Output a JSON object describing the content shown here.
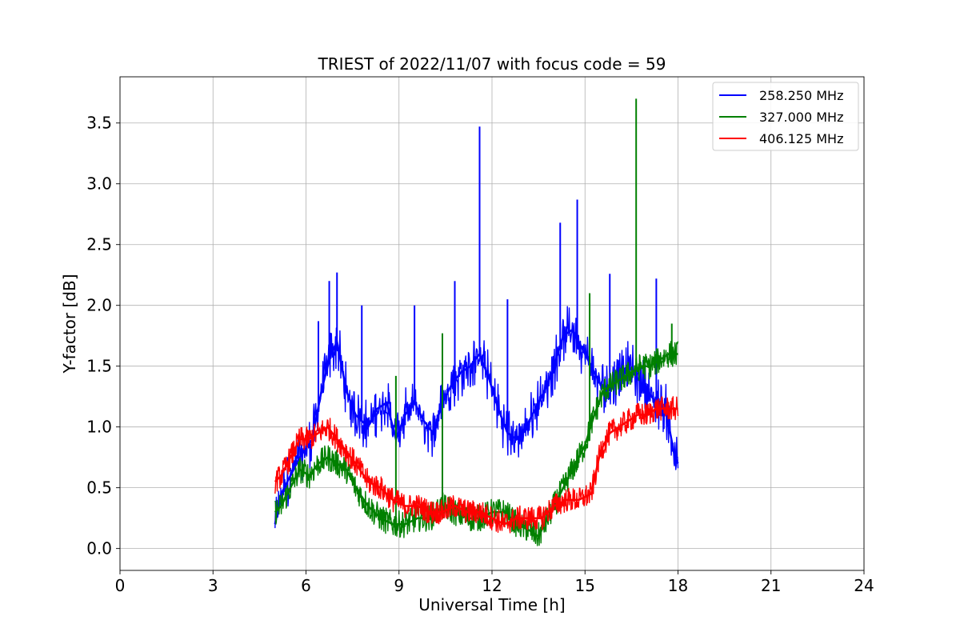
{
  "chart_data": {
    "type": "line",
    "title": "TRIEST of 2022/11/07 with focus code = 59",
    "xlabel": "Universal Time [h]",
    "ylabel": "Y-factor [dB]",
    "xlim": [
      0,
      24
    ],
    "ylim": [
      -0.18,
      3.88
    ],
    "xticks": [
      0,
      3,
      6,
      9,
      12,
      15,
      18,
      21,
      24
    ],
    "xtick_labels": [
      "0",
      "3",
      "6",
      "9",
      "12",
      "15",
      "18",
      "21",
      "24"
    ],
    "yticks": [
      0.0,
      0.5,
      1.0,
      1.5,
      2.0,
      2.5,
      3.0,
      3.5
    ],
    "ytick_labels": [
      "0.0",
      "0.5",
      "1.0",
      "1.5",
      "2.0",
      "2.5",
      "3.0",
      "3.5"
    ],
    "grid": true,
    "legend_position": "top-right",
    "series": [
      {
        "name": "258.250 MHz",
        "color": "#0000ff",
        "x": [
          5.0,
          5.2,
          5.5,
          5.8,
          6.2,
          6.5,
          6.8,
          7.0,
          7.3,
          7.6,
          8.0,
          8.3,
          8.6,
          8.9,
          9.2,
          9.5,
          9.8,
          10.1,
          10.4,
          10.7,
          11.0,
          11.3,
          11.6,
          11.9,
          12.2,
          12.5,
          12.8,
          13.1,
          13.4,
          13.7,
          14.0,
          14.3,
          14.6,
          14.9,
          15.2,
          15.5,
          15.8,
          16.1,
          16.4,
          16.7,
          17.0,
          17.3,
          17.6,
          17.9,
          18.0
        ],
        "y": [
          0.2,
          0.45,
          0.6,
          0.75,
          0.9,
          1.3,
          1.6,
          1.7,
          1.3,
          1.1,
          1.0,
          1.15,
          1.2,
          0.9,
          1.1,
          1.2,
          1.05,
          0.95,
          1.2,
          1.35,
          1.45,
          1.5,
          1.6,
          1.4,
          1.15,
          0.95,
          0.9,
          1.0,
          1.15,
          1.3,
          1.5,
          1.75,
          1.8,
          1.65,
          1.5,
          1.35,
          1.3,
          1.45,
          1.5,
          1.4,
          1.3,
          1.2,
          1.15,
          0.75,
          0.7
        ],
        "peaks": [
          {
            "x": 6.4,
            "y": 1.87
          },
          {
            "x": 6.75,
            "y": 2.2
          },
          {
            "x": 7.0,
            "y": 2.27
          },
          {
            "x": 7.8,
            "y": 2.0
          },
          {
            "x": 9.5,
            "y": 2.0
          },
          {
            "x": 10.8,
            "y": 2.2
          },
          {
            "x": 11.6,
            "y": 3.47
          },
          {
            "x": 12.5,
            "y": 2.05
          },
          {
            "x": 14.2,
            "y": 2.68
          },
          {
            "x": 14.75,
            "y": 2.87
          },
          {
            "x": 15.8,
            "y": 2.26
          },
          {
            "x": 17.3,
            "y": 2.22
          }
        ]
      },
      {
        "name": "327.000 MHz",
        "color": "#008000",
        "x": [
          5.0,
          5.2,
          5.5,
          5.8,
          6.1,
          6.4,
          6.7,
          7.0,
          7.3,
          7.6,
          8.0,
          8.4,
          8.8,
          9.2,
          9.6,
          10.0,
          10.4,
          10.8,
          11.2,
          11.6,
          12.0,
          12.4,
          12.8,
          13.2,
          13.5,
          13.8,
          14.1,
          14.4,
          14.7,
          15.0,
          15.3,
          15.6,
          15.9,
          16.2,
          16.5,
          16.8,
          17.1,
          17.4,
          17.7,
          18.0
        ],
        "y": [
          0.3,
          0.35,
          0.5,
          0.65,
          0.6,
          0.7,
          0.75,
          0.7,
          0.65,
          0.5,
          0.35,
          0.25,
          0.2,
          0.2,
          0.25,
          0.25,
          0.35,
          0.3,
          0.25,
          0.25,
          0.3,
          0.3,
          0.2,
          0.15,
          0.1,
          0.25,
          0.4,
          0.55,
          0.7,
          0.85,
          1.1,
          1.3,
          1.35,
          1.4,
          1.45,
          1.5,
          1.5,
          1.55,
          1.6,
          1.6
        ],
        "peaks": [
          {
            "x": 8.9,
            "y": 1.42
          },
          {
            "x": 10.4,
            "y": 1.77
          },
          {
            "x": 15.15,
            "y": 2.1
          },
          {
            "x": 16.65,
            "y": 3.7
          },
          {
            "x": 17.8,
            "y": 1.85
          }
        ]
      },
      {
        "name": "406.125 MHz",
        "color": "#ff0000",
        "x": [
          5.0,
          5.2,
          5.5,
          5.8,
          6.1,
          6.4,
          6.7,
          7.0,
          7.3,
          7.6,
          8.0,
          8.4,
          8.8,
          9.2,
          9.6,
          10.0,
          10.4,
          10.8,
          11.2,
          11.6,
          12.0,
          12.4,
          12.8,
          13.2,
          13.6,
          14.0,
          14.4,
          14.8,
          15.2,
          15.5,
          15.8,
          16.1,
          16.4,
          16.7,
          17.0,
          17.3,
          17.6,
          18.0
        ],
        "y": [
          0.55,
          0.6,
          0.75,
          0.9,
          0.9,
          0.95,
          1.0,
          0.9,
          0.8,
          0.7,
          0.55,
          0.5,
          0.4,
          0.35,
          0.35,
          0.3,
          0.3,
          0.35,
          0.3,
          0.3,
          0.25,
          0.2,
          0.25,
          0.25,
          0.25,
          0.35,
          0.4,
          0.4,
          0.45,
          0.8,
          0.95,
          1.0,
          1.05,
          1.1,
          1.1,
          1.15,
          1.15,
          1.15
        ],
        "peaks": []
      }
    ]
  }
}
